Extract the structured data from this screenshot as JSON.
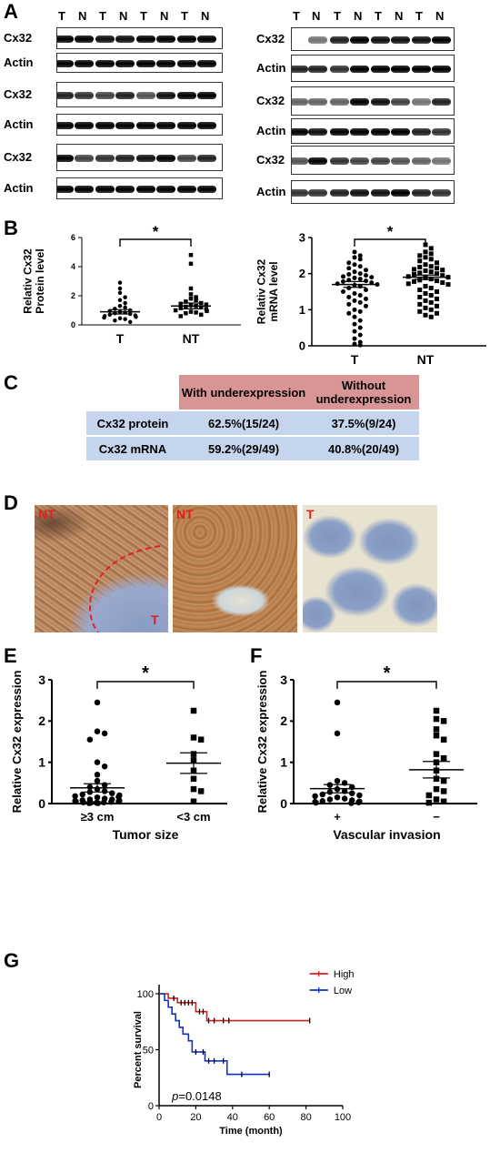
{
  "panel_labels": {
    "A": "A",
    "B": "B",
    "C": "C",
    "D": "D",
    "E": "E",
    "F": "F",
    "G": "G"
  },
  "panel_a": {
    "lanes": [
      "T",
      "N",
      "T",
      "N",
      "T",
      "N",
      "T",
      "N"
    ],
    "row_labels": {
      "cx32": "Cx32",
      "actin": "Actin"
    }
  },
  "panel_c": {
    "headers": [
      "With underexpression",
      "Without underexpression"
    ],
    "rows": [
      {
        "label": "Cx32 protein",
        "with": "62.5%(15/24)",
        "without": "37.5%(9/24)"
      },
      {
        "label": "Cx32 mRNA",
        "with": "59.2%(29/49)",
        "without": "40.8%(20/49)"
      }
    ],
    "header_color": "#d99595",
    "row_color": "#c5d5ee"
  },
  "panel_d": {
    "labels": [
      "NT",
      "T",
      "NT",
      "T"
    ],
    "label_color": "#e02020"
  },
  "chart_data": [
    {
      "id": "B-left",
      "type": "scatter",
      "ylabel": "Relativ Cx32 Protein level",
      "categories": [
        "T",
        "NT"
      ],
      "ylim": [
        0,
        6
      ],
      "yticks": [
        0,
        2,
        4,
        6
      ],
      "significance": "*",
      "series": [
        {
          "marker": "circle",
          "mean": 0.9,
          "sem": 0.15,
          "values": [
            2.9,
            2.5,
            2.2,
            1.9,
            1.7,
            1.5,
            1.3,
            1.2,
            1.1,
            1.0,
            0.95,
            0.9,
            0.85,
            0.8,
            0.75,
            0.7,
            0.65,
            0.6,
            0.55,
            0.5,
            0.45,
            0.4,
            0.3,
            0.2
          ]
        },
        {
          "marker": "square",
          "mean": 1.3,
          "sem": 0.2,
          "values": [
            4.8,
            4.2,
            2.5,
            2.1,
            1.9,
            1.8,
            1.7,
            1.6,
            1.5,
            1.45,
            1.4,
            1.35,
            1.3,
            1.25,
            1.2,
            1.15,
            1.1,
            1.0,
            0.95,
            0.9,
            0.85,
            0.8,
            0.7,
            0.6
          ]
        }
      ]
    },
    {
      "id": "B-right",
      "type": "scatter",
      "ylabel": "Relativ Cx32 mRNA level",
      "categories": [
        "T",
        "NT"
      ],
      "ylim": [
        0,
        3
      ],
      "yticks": [
        0,
        1,
        2,
        3
      ],
      "significance": "*",
      "series": [
        {
          "marker": "circle",
          "mean": 1.7,
          "sem": 0.08,
          "values": [
            2.6,
            2.5,
            2.45,
            2.4,
            2.3,
            2.25,
            2.2,
            2.15,
            2.1,
            2.05,
            2.0,
            1.98,
            1.95,
            1.92,
            1.9,
            1.88,
            1.85,
            1.82,
            1.8,
            1.78,
            1.75,
            1.72,
            1.7,
            1.68,
            1.65,
            1.6,
            1.55,
            1.5,
            1.45,
            1.4,
            1.35,
            1.3,
            1.25,
            1.2,
            1.15,
            1.1,
            1.0,
            0.95,
            0.9,
            0.8,
            0.7,
            0.6,
            0.5,
            0.4,
            0.3,
            0.2,
            0.1,
            0.05,
            0.02
          ]
        },
        {
          "marker": "square",
          "mean": 1.9,
          "sem": 0.06,
          "values": [
            2.8,
            2.7,
            2.6,
            2.55,
            2.5,
            2.45,
            2.4,
            2.35,
            2.3,
            2.25,
            2.2,
            2.18,
            2.15,
            2.12,
            2.1,
            2.08,
            2.05,
            2.02,
            2.0,
            1.98,
            1.95,
            1.92,
            1.9,
            1.88,
            1.85,
            1.82,
            1.8,
            1.78,
            1.75,
            1.72,
            1.7,
            1.65,
            1.6,
            1.55,
            1.5,
            1.45,
            1.4,
            1.35,
            1.3,
            1.25,
            1.2,
            1.15,
            1.1,
            1.05,
            1.0,
            0.95,
            0.9,
            0.85,
            0.8
          ]
        }
      ]
    },
    {
      "id": "E",
      "type": "scatter",
      "ylabel": "Relative Cx32 expression",
      "xlabel": "Tumor size",
      "categories": [
        "≥3 cm",
        "<3 cm"
      ],
      "ylim": [
        0,
        3
      ],
      "yticks": [
        0,
        1,
        2,
        3
      ],
      "significance": "*",
      "series": [
        {
          "marker": "circle",
          "mean": 0.38,
          "sem": 0.1,
          "values": [
            2.45,
            1.75,
            1.7,
            1.55,
            1.0,
            0.9,
            0.7,
            0.55,
            0.45,
            0.4,
            0.35,
            0.3,
            0.28,
            0.25,
            0.22,
            0.2,
            0.18,
            0.16,
            0.15,
            0.12,
            0.1,
            0.1,
            0.08,
            0.07,
            0.06,
            0.05,
            0.05,
            0.04,
            0.03,
            0.03,
            0.02,
            0.02,
            0.01,
            0.01
          ]
        },
        {
          "marker": "square",
          "mean": 0.98,
          "sem": 0.25,
          "values": [
            2.25,
            1.6,
            1.55,
            1.2,
            1.05,
            0.8,
            0.6,
            0.35,
            0.3,
            0.05
          ]
        }
      ]
    },
    {
      "id": "F",
      "type": "scatter",
      "ylabel": "Relative Cx32 expression",
      "xlabel": "Vascular invasion",
      "categories": [
        "+",
        "−"
      ],
      "ylim": [
        0,
        3
      ],
      "yticks": [
        0,
        1,
        2,
        3
      ],
      "significance": "*",
      "series": [
        {
          "marker": "circle",
          "mean": 0.36,
          "sem": 0.1,
          "values": [
            2.45,
            1.7,
            0.55,
            0.5,
            0.45,
            0.4,
            0.35,
            0.3,
            0.28,
            0.25,
            0.22,
            0.2,
            0.18,
            0.15,
            0.12,
            0.1,
            0.08,
            0.06,
            0.05,
            0.04,
            0.03,
            0.02,
            0.01
          ]
        },
        {
          "marker": "square",
          "mean": 0.82,
          "sem": 0.2,
          "values": [
            2.25,
            2.05,
            2.0,
            1.8,
            1.65,
            1.55,
            1.2,
            1.1,
            1.0,
            0.8,
            0.6,
            0.55,
            0.35,
            0.3,
            0.2,
            0.1,
            0.05,
            0.02
          ]
        }
      ]
    },
    {
      "id": "G",
      "type": "line",
      "ylabel": "Percent survival",
      "xlabel": "Time (month)",
      "xlim": [
        0,
        100
      ],
      "ylim": [
        0,
        100
      ],
      "xticks": [
        0,
        20,
        40,
        60,
        80,
        100
      ],
      "yticks": [
        0,
        50,
        100
      ],
      "annotation": {
        "prefix": "p",
        "value": "=0.0148"
      },
      "series": [
        {
          "name": "High",
          "color": "#d02020",
          "steps": [
            [
              0,
              100
            ],
            [
              5,
              100
            ],
            [
              5,
              96
            ],
            [
              10,
              96
            ],
            [
              10,
              92
            ],
            [
              20,
              92
            ],
            [
              20,
              84
            ],
            [
              26,
              84
            ],
            [
              26,
              76
            ],
            [
              82,
              76
            ]
          ],
          "censors": [
            8,
            12,
            14,
            16,
            18,
            22,
            24,
            27,
            30,
            35,
            38,
            82
          ]
        },
        {
          "name": "Low",
          "color": "#1030c8",
          "steps": [
            [
              0,
              100
            ],
            [
              3,
              100
            ],
            [
              3,
              94
            ],
            [
              5,
              94
            ],
            [
              5,
              88
            ],
            [
              7,
              88
            ],
            [
              7,
              82
            ],
            [
              9,
              82
            ],
            [
              9,
              76
            ],
            [
              11,
              76
            ],
            [
              11,
              70
            ],
            [
              13,
              70
            ],
            [
              13,
              64
            ],
            [
              16,
              64
            ],
            [
              16,
              58
            ],
            [
              18,
              58
            ],
            [
              18,
              48
            ],
            [
              25,
              48
            ],
            [
              25,
              40
            ],
            [
              37,
              40
            ],
            [
              37,
              28
            ],
            [
              60,
              28
            ]
          ],
          "censors": [
            20,
            24,
            27,
            30,
            35,
            45,
            60
          ]
        }
      ]
    }
  ]
}
